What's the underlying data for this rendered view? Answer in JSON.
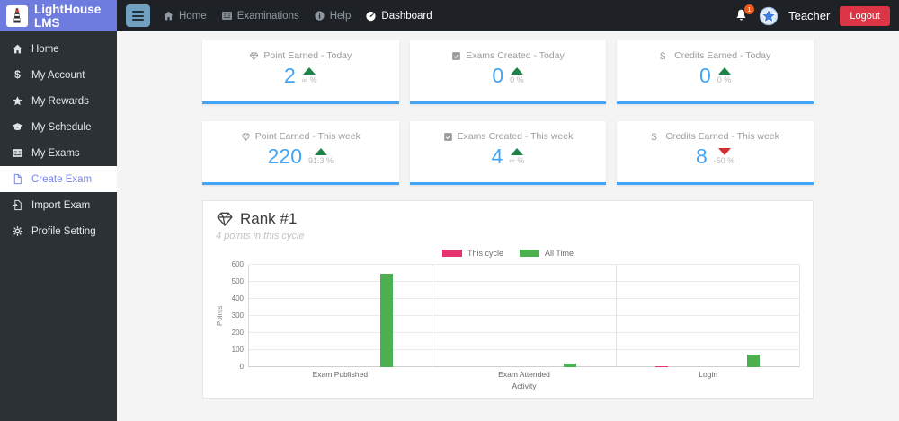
{
  "brand": {
    "name": "LightHouse LMS",
    "logo_icon": "lighthouse"
  },
  "navbar": {
    "items": [
      {
        "label": "Home",
        "icon": "home",
        "active": false
      },
      {
        "label": "Examinations",
        "icon": "examinations",
        "active": false
      },
      {
        "label": "Help",
        "icon": "help",
        "active": false
      },
      {
        "label": "Dashboard",
        "icon": "dashboard",
        "active": true
      }
    ],
    "notification_count": "1",
    "user_name": "Teacher",
    "logout_label": "Logout"
  },
  "sidebar": {
    "items": [
      {
        "label": "Home",
        "icon": "home",
        "active": false
      },
      {
        "label": "My Account",
        "icon": "dollar",
        "active": false
      },
      {
        "label": "My Rewards",
        "icon": "star",
        "active": false
      },
      {
        "label": "My Schedule",
        "icon": "graduation-cap",
        "active": false
      },
      {
        "label": "My Exams",
        "icon": "exam-card",
        "active": false
      },
      {
        "label": "Create Exam",
        "icon": "file",
        "active": true
      },
      {
        "label": "Import Exam",
        "icon": "file-import",
        "active": false
      },
      {
        "label": "Profile Setting",
        "icon": "gear",
        "active": false
      }
    ]
  },
  "cards": [
    {
      "title": "Point Earned - Today",
      "icon": "gem",
      "value": "2",
      "change": "∞ %",
      "trend": "up"
    },
    {
      "title": "Exams Created - Today",
      "icon": "check-square",
      "value": "0",
      "change": "0 %",
      "trend": "up"
    },
    {
      "title": "Credits Earned - Today",
      "icon": "dollar",
      "value": "0",
      "change": "0 %",
      "trend": "up"
    },
    {
      "title": "Point Earned - This week",
      "icon": "gem",
      "value": "220",
      "change": "91.3 %",
      "trend": "up"
    },
    {
      "title": "Exams Created - This week",
      "icon": "check-square",
      "value": "4",
      "change": "∞ %",
      "trend": "up"
    },
    {
      "title": "Credits Earned - This week",
      "icon": "dollar",
      "value": "8",
      "change": "-50 %",
      "trend": "down"
    }
  ],
  "rank_panel": {
    "title": "Rank #1",
    "subtitle": "4 points in this cycle",
    "icon": "gem"
  },
  "chart_data": {
    "type": "bar",
    "title": "Rank #1",
    "categories": [
      "Exam Published",
      "Exam Attended",
      "Login"
    ],
    "series": [
      {
        "name": "This cycle",
        "color": "#e6326e",
        "values": [
          0,
          0,
          4
        ]
      },
      {
        "name": "All Time",
        "color": "#4caf50",
        "values": [
          550,
          20,
          75
        ]
      }
    ],
    "xlabel": "Activity",
    "ylabel": "Points",
    "ylim": [
      0,
      600
    ],
    "yticks": [
      0,
      100,
      200,
      300,
      400,
      500,
      600
    ],
    "legend_position": "top-center",
    "grid": true
  },
  "colors": {
    "header_purple": "#6e7ce0",
    "navbar_bg": "#1e2227",
    "sidebar_bg": "#2c3136",
    "sidebar_active": "#7b87e4",
    "main_bg": "#f4f4f5",
    "accent_blue": "#42a5f5",
    "logout_red": "#dc3545",
    "badge_orange": "#ee5a1e",
    "hamburger_bg": "#72a0c1",
    "trend_up": "#1d8348",
    "trend_down": "#d32f2f",
    "chart_pink": "#e6326e",
    "chart_green": "#4caf50"
  }
}
